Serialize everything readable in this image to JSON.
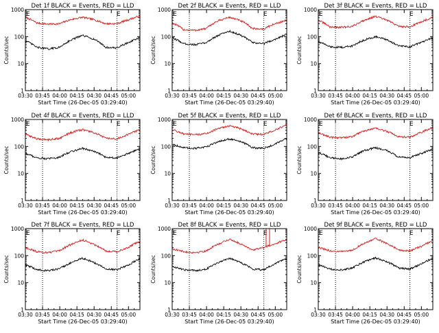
{
  "colors": {
    "events": "#000000",
    "lld": "#d41c1c",
    "axis": "#000000"
  },
  "chart_data": [
    {
      "type": "line",
      "detector": "Det 1f",
      "title": "Det 1f BLACK = Events, RED = LLD",
      "xlabel": "Start Time (26-Dec-05 03:29:40)",
      "ylabel": "Counts/sec",
      "yscale": "log",
      "ylim": [
        1,
        1000
      ],
      "ytick_labels": [
        "1",
        "10",
        "100",
        "1000"
      ],
      "xlim": [
        "03:30",
        "05:10"
      ],
      "xtick_labels": [
        "03:30",
        "03:45",
        "04:00",
        "04:15",
        "04:30",
        "04:45",
        "05:00"
      ],
      "vlines": [
        "03:45",
        "04:50"
      ],
      "markers": [
        "E",
        "E"
      ],
      "marker_times": [
        "03:30",
        "04:49"
      ],
      "x": [
        "03:30",
        "03:40",
        "03:50",
        "04:00",
        "04:10",
        "04:20",
        "04:30",
        "04:40",
        "04:50",
        "05:00",
        "05:10"
      ],
      "series": [
        {
          "role": "lld",
          "values": [
            520,
            320,
            290,
            300,
            430,
            520,
            420,
            300,
            300,
            420,
            580
          ]
        },
        {
          "role": "events",
          "values": [
            70,
            40,
            35,
            40,
            75,
            110,
            80,
            40,
            38,
            60,
            90
          ]
        }
      ]
    },
    {
      "type": "line",
      "detector": "Det 2f",
      "title": "Det 2f BLACK = Events, RED = LLD",
      "xlabel": "Start Time (26-Dec-05 03:29:40)",
      "ylabel": "Counts/sec",
      "yscale": "log",
      "ylim": [
        1,
        1000
      ],
      "ytick_labels": [
        "1",
        "10",
        "100",
        "1000"
      ],
      "xlim": [
        "03:30",
        "05:10"
      ],
      "xtick_labels": [
        "03:30",
        "03:45",
        "04:00",
        "04:15",
        "04:30",
        "04:45",
        "05:00"
      ],
      "vlines": [
        "03:45",
        "04:50"
      ],
      "markers": [
        "E",
        "E"
      ],
      "marker_times": [
        "03:30",
        "04:49"
      ],
      "x": [
        "03:30",
        "03:40",
        "03:50",
        "04:00",
        "04:10",
        "04:20",
        "04:30",
        "04:40",
        "04:50",
        "05:00",
        "05:10"
      ],
      "series": [
        {
          "role": "lld",
          "values": [
            320,
            180,
            170,
            200,
            380,
            520,
            380,
            200,
            190,
            300,
            400
          ]
        },
        {
          "role": "events",
          "values": [
            90,
            55,
            50,
            60,
            110,
            160,
            110,
            60,
            55,
            80,
            120
          ]
        }
      ]
    },
    {
      "type": "line",
      "detector": "Det 3f",
      "title": "Det 3f BLACK = Events, RED = LLD",
      "xlabel": "Start Time (26-Dec-05 03:29:40)",
      "ylabel": "Counts/sec",
      "yscale": "log",
      "ylim": [
        1,
        1000
      ],
      "ytick_labels": [
        "1",
        "10",
        "100",
        "1000"
      ],
      "xlim": [
        "03:30",
        "05:10"
      ],
      "xtick_labels": [
        "03:30",
        "03:45",
        "04:00",
        "04:15",
        "04:30",
        "04:45",
        "05:00"
      ],
      "vlines": [
        "03:45",
        "04:50"
      ],
      "markers": [
        "E",
        "E"
      ],
      "marker_times": [
        "03:30",
        "04:49"
      ],
      "x": [
        "03:30",
        "03:40",
        "03:50",
        "04:00",
        "04:10",
        "04:20",
        "04:30",
        "04:40",
        "04:50",
        "05:00",
        "05:10"
      ],
      "series": [
        {
          "role": "lld",
          "values": [
            400,
            230,
            220,
            240,
            400,
            560,
            400,
            240,
            230,
            350,
            520
          ]
        },
        {
          "role": "events",
          "values": [
            65,
            42,
            40,
            45,
            75,
            100,
            75,
            45,
            42,
            60,
            90
          ]
        }
      ]
    },
    {
      "type": "line",
      "detector": "Det 4f",
      "title": "Det 4f BLACK = Events, RED = LLD",
      "xlabel": "Start Time (26-Dec-05 03:29:40)",
      "ylabel": "Counts/sec",
      "yscale": "log",
      "ylim": [
        1,
        1000
      ],
      "ytick_labels": [
        "1",
        "10",
        "100",
        "1000"
      ],
      "xlim": [
        "03:30",
        "05:10"
      ],
      "xtick_labels": [
        "03:30",
        "03:45",
        "04:00",
        "04:15",
        "04:30",
        "04:45",
        "05:00"
      ],
      "vlines": [
        "03:45",
        "04:50"
      ],
      "markers": [
        "E",
        "E"
      ],
      "marker_times": [
        "03:30",
        "04:49"
      ],
      "x": [
        "03:30",
        "03:40",
        "03:50",
        "04:00",
        "04:10",
        "04:20",
        "04:30",
        "04:40",
        "04:50",
        "05:00",
        "05:10"
      ],
      "series": [
        {
          "role": "lld",
          "values": [
            280,
            190,
            180,
            200,
            330,
            420,
            320,
            200,
            190,
            280,
            420
          ]
        },
        {
          "role": "events",
          "values": [
            55,
            38,
            35,
            40,
            65,
            85,
            65,
            40,
            38,
            55,
            80
          ]
        }
      ]
    },
    {
      "type": "line",
      "detector": "Det 5f",
      "title": "Det 5f BLACK = Events, RED = LLD",
      "xlabel": "Start Time (26-Dec-05 03:29:40)",
      "ylabel": "Counts/sec",
      "yscale": "log",
      "ylim": [
        1,
        1000
      ],
      "ytick_labels": [
        "1",
        "10",
        "100",
        "1000"
      ],
      "xlim": [
        "03:30",
        "05:10"
      ],
      "xtick_labels": [
        "03:30",
        "03:45",
        "04:00",
        "04:15",
        "04:30",
        "04:45",
        "05:00"
      ],
      "vlines": [
        "03:45",
        "04:50"
      ],
      "markers": [
        "E",
        "E"
      ],
      "marker_times": [
        "03:30",
        "04:49"
      ],
      "x": [
        "03:30",
        "03:40",
        "03:50",
        "04:00",
        "04:10",
        "04:20",
        "04:30",
        "04:40",
        "04:50",
        "05:00",
        "05:10"
      ],
      "series": [
        {
          "role": "lld",
          "values": [
            420,
            290,
            270,
            300,
            450,
            580,
            450,
            290,
            280,
            400,
            620
          ]
        },
        {
          "role": "events",
          "values": [
            120,
            90,
            85,
            95,
            150,
            190,
            150,
            90,
            85,
            120,
            200
          ]
        }
      ]
    },
    {
      "type": "line",
      "detector": "Det 6f",
      "title": "Det 6f BLACK = Events, RED = LLD",
      "xlabel": "Start Time (26-Dec-05 03:29:40)",
      "ylabel": "Counts/sec",
      "yscale": "log",
      "ylim": [
        1,
        1000
      ],
      "ytick_labels": [
        "1",
        "10",
        "100",
        "1000"
      ],
      "xlim": [
        "03:30",
        "05:10"
      ],
      "xtick_labels": [
        "03:30",
        "03:45",
        "04:00",
        "04:15",
        "04:30",
        "04:45",
        "05:00"
      ],
      "vlines": [
        "03:45",
        "04:50"
      ],
      "markers": [
        "E",
        "E"
      ],
      "marker_times": [
        "03:30",
        "04:49"
      ],
      "x": [
        "03:30",
        "03:40",
        "03:50",
        "04:00",
        "04:10",
        "04:20",
        "04:30",
        "04:40",
        "04:50",
        "05:00",
        "05:10"
      ],
      "series": [
        {
          "role": "lld",
          "values": [
            320,
            220,
            210,
            230,
            380,
            470,
            360,
            230,
            220,
            330,
            500
          ]
        },
        {
          "role": "events",
          "values": [
            60,
            38,
            35,
            40,
            70,
            90,
            70,
            40,
            38,
            55,
            80
          ]
        }
      ]
    },
    {
      "type": "line",
      "detector": "Det 7f",
      "title": "Det 7f BLACK = Events, RED = LLD",
      "xlabel": "Start Time (26-Dec-05 03:29:40)",
      "ylabel": "Counts/sec",
      "yscale": "log",
      "ylim": [
        1,
        1000
      ],
      "ytick_labels": [
        "1",
        "10",
        "100",
        "1000"
      ],
      "xlim": [
        "03:30",
        "05:10"
      ],
      "xtick_labels": [
        "03:30",
        "03:45",
        "04:00",
        "04:15",
        "04:30",
        "04:45",
        "05:00"
      ],
      "vlines": [
        "03:45",
        "04:50"
      ],
      "markers": [
        "E",
        "E"
      ],
      "marker_times": [
        "03:30",
        "04:49"
      ],
      "x": [
        "03:30",
        "03:40",
        "03:50",
        "04:00",
        "04:10",
        "04:20",
        "04:30",
        "04:40",
        "04:50",
        "05:00",
        "05:10"
      ],
      "series": [
        {
          "role": "lld",
          "values": [
            200,
            140,
            130,
            150,
            260,
            380,
            260,
            150,
            140,
            200,
            340
          ]
        },
        {
          "role": "events",
          "values": [
            45,
            30,
            28,
            32,
            55,
            80,
            55,
            32,
            30,
            45,
            75
          ]
        }
      ]
    },
    {
      "type": "line",
      "detector": "Det 8f",
      "title": "Det 8f BLACK = Events, RED = LLD",
      "xlabel": "Start Time (26-Dec-05 03:29:40)",
      "ylabel": "Counts/sec",
      "yscale": "log",
      "ylim": [
        1,
        1000
      ],
      "ytick_labels": [
        "1",
        "10",
        "100",
        "1000"
      ],
      "xlim": [
        "03:30",
        "05:10"
      ],
      "xtick_labels": [
        "03:30",
        "03:45",
        "04:00",
        "04:15",
        "04:30",
        "04:45",
        "05:00"
      ],
      "vlines": [
        "03:45",
        "04:50"
      ],
      "markers": [
        "E",
        "E"
      ],
      "marker_times": [
        "03:30",
        "04:49"
      ],
      "x": [
        "03:30",
        "03:40",
        "03:50",
        "04:00",
        "04:10",
        "04:20",
        "04:30",
        "04:40",
        "04:50",
        "05:00",
        "05:10"
      ],
      "series": [
        {
          "role": "lld",
          "values": [
            180,
            140,
            130,
            150,
            260,
            400,
            270,
            160,
            200,
            280,
            380
          ]
        },
        {
          "role": "events",
          "values": [
            40,
            30,
            28,
            32,
            55,
            80,
            55,
            32,
            30,
            50,
            80
          ]
        }
      ],
      "lld_spike": {
        "from": "04:52",
        "to": "04:55",
        "value": 1000
      }
    },
    {
      "type": "line",
      "detector": "Det 9f",
      "title": "Det 9f BLACK = Events, RED = LLD",
      "xlabel": "Start Time (26-Dec-05 03:29:40)",
      "ylabel": "Counts/sec",
      "yscale": "log",
      "ylim": [
        1,
        1000
      ],
      "ytick_labels": [
        "1",
        "10",
        "100",
        "1000"
      ],
      "xlim": [
        "03:30",
        "05:10"
      ],
      "xtick_labels": [
        "03:30",
        "03:45",
        "04:00",
        "04:15",
        "04:30",
        "04:45",
        "05:00"
      ],
      "vlines": [
        "03:45",
        "04:50"
      ],
      "markers": [
        "E",
        "E"
      ],
      "marker_times": [
        "03:30",
        "04:49"
      ],
      "x": [
        "03:30",
        "03:40",
        "03:50",
        "04:00",
        "04:10",
        "04:20",
        "04:30",
        "04:40",
        "04:50",
        "05:00",
        "05:10"
      ],
      "series": [
        {
          "role": "lld",
          "values": [
            200,
            150,
            140,
            160,
            280,
            420,
            280,
            160,
            150,
            220,
            360
          ]
        },
        {
          "role": "events",
          "values": [
            45,
            32,
            30,
            35,
            58,
            82,
            58,
            35,
            32,
            48,
            80
          ]
        }
      ]
    }
  ]
}
